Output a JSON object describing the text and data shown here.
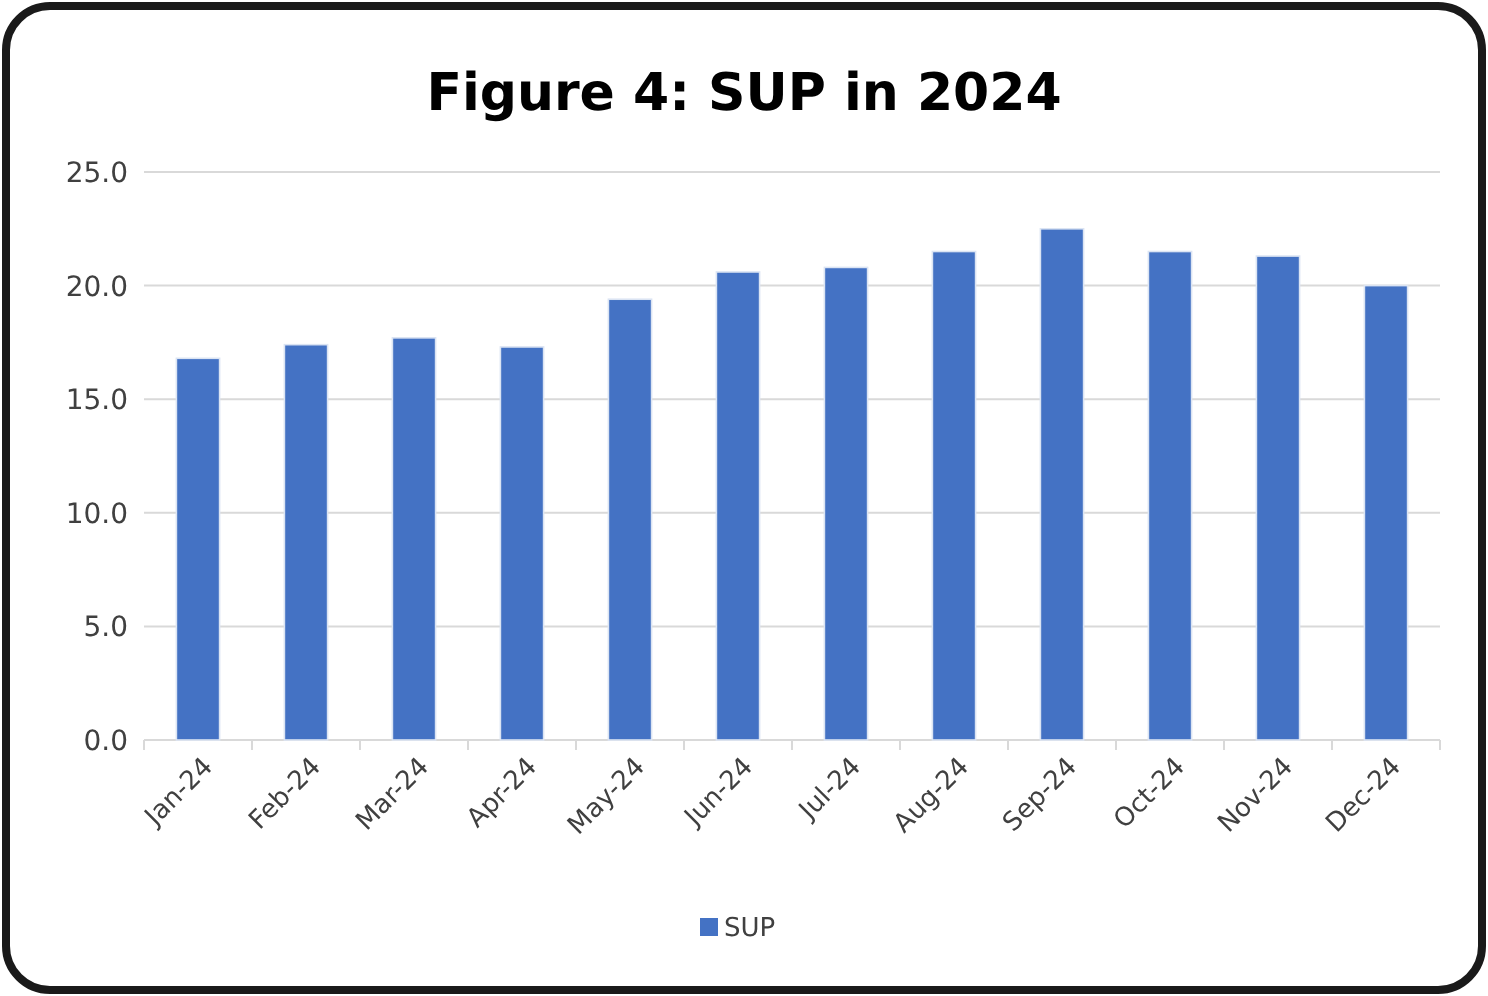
{
  "chart_data": {
    "type": "bar",
    "title": "Figure 4: SUP in 2024",
    "categories": [
      "Jan-24",
      "Feb-24",
      "Mar-24",
      "Apr-24",
      "May-24",
      "Jun-24",
      "Jul-24",
      "Aug-24",
      "Sep-24",
      "Oct-24",
      "Nov-24",
      "Dec-24"
    ],
    "series": [
      {
        "name": "SUP",
        "color": "#4472c4",
        "values": [
          16.8,
          17.4,
          17.7,
          17.3,
          19.4,
          20.6,
          20.8,
          21.5,
          22.5,
          21.5,
          21.3,
          20.0
        ]
      }
    ],
    "ylim": [
      0,
      25
    ],
    "yticks": [
      {
        "value": 0,
        "label": "0.0"
      },
      {
        "value": 5,
        "label": "5.0"
      },
      {
        "value": 10,
        "label": "10.0"
      },
      {
        "value": 15,
        "label": "15.0"
      },
      {
        "value": 20,
        "label": "20.0"
      },
      {
        "value": 25,
        "label": "25.0"
      }
    ],
    "grid": "y",
    "legend": "bottom"
  }
}
